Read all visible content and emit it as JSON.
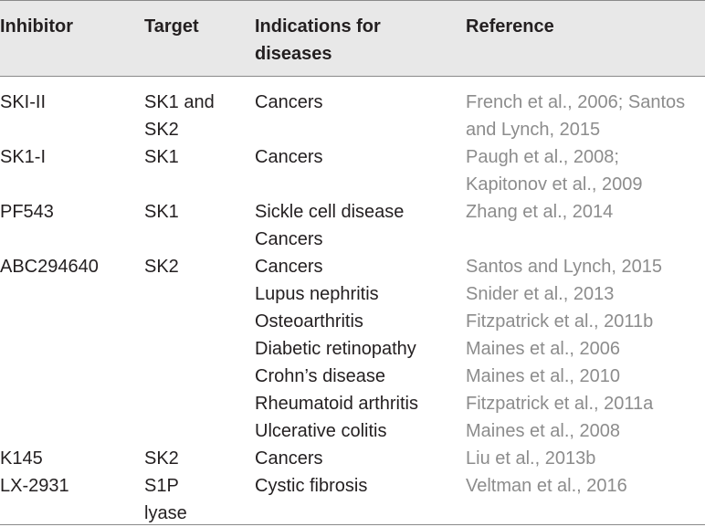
{
  "headers": {
    "inhibitor": "Inhibitor",
    "target": "Target",
    "indications": "Indications for\ndiseases",
    "reference": "Reference"
  },
  "rows": [
    {
      "inhibitor": "SKI-II",
      "target": [
        "SK1 and",
        "SK2"
      ],
      "indications": [
        "Cancers"
      ],
      "references": [
        "French et al., 2006; Santos",
        "and Lynch, 2015"
      ]
    },
    {
      "inhibitor": "SK1-I",
      "target": [
        "SK1"
      ],
      "indications": [
        "Cancers"
      ],
      "references": [
        "Paugh et al., 2008;",
        "Kapitonov et al., 2009"
      ]
    },
    {
      "inhibitor": "PF543",
      "target": [
        "SK1"
      ],
      "indications": [
        "Sickle cell disease",
        "Cancers"
      ],
      "references": [
        "Zhang et al., 2014"
      ]
    },
    {
      "inhibitor": "ABC294640",
      "target": [
        "SK2"
      ],
      "indications": [
        "Cancers",
        "Lupus nephritis",
        "Osteoarthritis",
        "Diabetic retinopathy",
        "Crohn’s disease",
        "Rheumatoid arthritis",
        "Ulcerative colitis"
      ],
      "references": [
        "Santos and Lynch, 2015",
        "Snider et al., 2013",
        "Fitzpatrick et al., 2011b",
        "Maines et al., 2006",
        "Maines et al., 2010",
        "Fitzpatrick et al., 2011a",
        "Maines et al., 2008"
      ]
    },
    {
      "inhibitor": "K145",
      "target": [
        "SK2"
      ],
      "indications": [
        "Cancers"
      ],
      "references": [
        "Liu et al., 2013b"
      ]
    },
    {
      "inhibitor": "LX-2931",
      "target": [
        "S1P",
        "lyase"
      ],
      "indications": [
        "Cystic fibrosis"
      ],
      "references": [
        "Veltman et al., 2016"
      ]
    }
  ],
  "colors": {
    "header_background": "#e8e8e8",
    "text": "#231f20",
    "reference_text": "#8c8c8c",
    "rule": "#8a8a8a"
  }
}
